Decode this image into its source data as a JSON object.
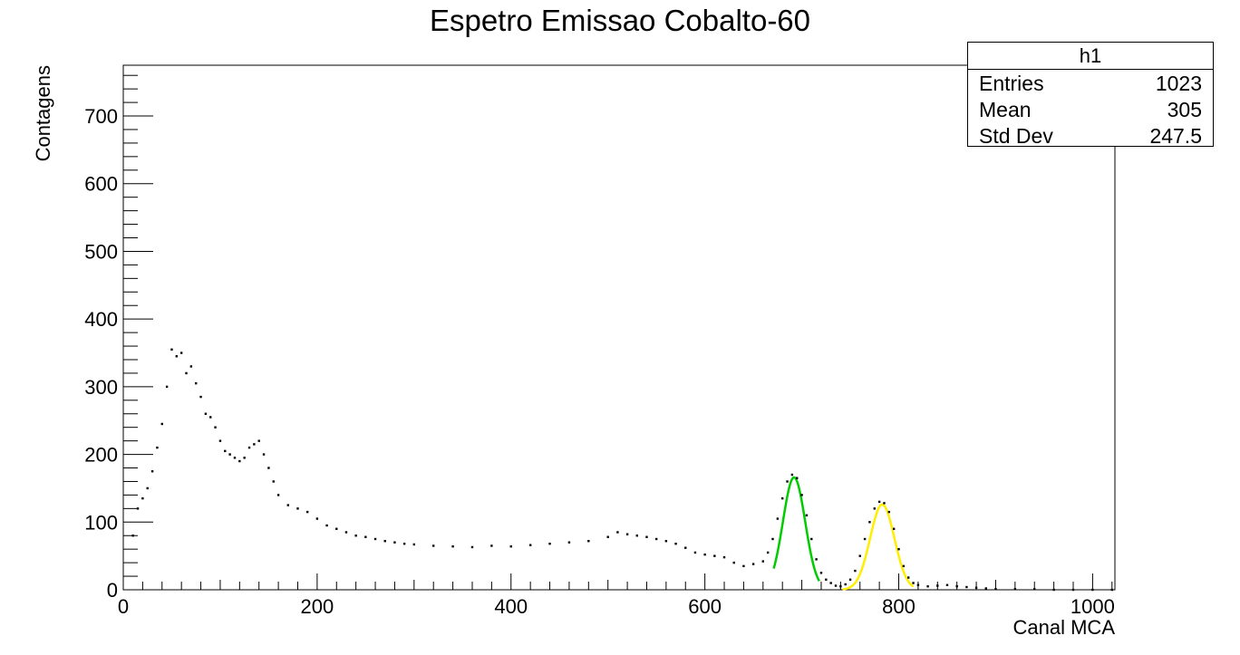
{
  "chart_data": {
    "type": "scatter",
    "title": "Espetro Emissao Cobalto-60",
    "xlabel": "Canal MCA",
    "ylabel": "Contagens",
    "xlim": [
      0,
      1023
    ],
    "ylim": [
      0,
      775
    ],
    "x_ticks": [
      "0",
      "200",
      "400",
      "600",
      "800",
      "1000"
    ],
    "y_ticks": [
      "0",
      "100",
      "200",
      "300",
      "400",
      "500",
      "600",
      "700"
    ],
    "grid": false,
    "stats_box": {
      "name": "h1",
      "rows": [
        {
          "label": "Entries",
          "value": "1023"
        },
        {
          "label": "Mean",
          "value": "305"
        },
        {
          "label": "Std Dev",
          "value": "247.5"
        }
      ]
    },
    "series": [
      {
        "marker": "dot",
        "color": "#000000",
        "points": [
          [
            10,
            80
          ],
          [
            15,
            120
          ],
          [
            20,
            135
          ],
          [
            25,
            150
          ],
          [
            30,
            175
          ],
          [
            35,
            210
          ],
          [
            40,
            245
          ],
          [
            45,
            300
          ],
          [
            50,
            355
          ],
          [
            55,
            345
          ],
          [
            60,
            350
          ],
          [
            65,
            320
          ],
          [
            70,
            330
          ],
          [
            75,
            305
          ],
          [
            80,
            285
          ],
          [
            85,
            260
          ],
          [
            90,
            255
          ],
          [
            95,
            240
          ],
          [
            100,
            220
          ],
          [
            105,
            205
          ],
          [
            110,
            200
          ],
          [
            115,
            195
          ],
          [
            120,
            190
          ],
          [
            125,
            195
          ],
          [
            130,
            210
          ],
          [
            135,
            215
          ],
          [
            140,
            220
          ],
          [
            145,
            200
          ],
          [
            150,
            180
          ],
          [
            155,
            160
          ],
          [
            160,
            140
          ],
          [
            170,
            125
          ],
          [
            180,
            120
          ],
          [
            190,
            115
          ],
          [
            200,
            105
          ],
          [
            210,
            95
          ],
          [
            220,
            90
          ],
          [
            230,
            85
          ],
          [
            240,
            80
          ],
          [
            250,
            78
          ],
          [
            260,
            75
          ],
          [
            270,
            72
          ],
          [
            280,
            70
          ],
          [
            290,
            68
          ],
          [
            300,
            67
          ],
          [
            320,
            65
          ],
          [
            340,
            64
          ],
          [
            360,
            63
          ],
          [
            380,
            65
          ],
          [
            400,
            64
          ],
          [
            420,
            66
          ],
          [
            440,
            68
          ],
          [
            460,
            70
          ],
          [
            480,
            72
          ],
          [
            500,
            78
          ],
          [
            510,
            85
          ],
          [
            520,
            82
          ],
          [
            530,
            80
          ],
          [
            540,
            78
          ],
          [
            550,
            75
          ],
          [
            560,
            72
          ],
          [
            570,
            68
          ],
          [
            580,
            62
          ],
          [
            590,
            55
          ],
          [
            600,
            52
          ],
          [
            610,
            50
          ],
          [
            620,
            48
          ],
          [
            630,
            40
          ],
          [
            640,
            35
          ],
          [
            650,
            38
          ],
          [
            660,
            42
          ],
          [
            665,
            55
          ],
          [
            670,
            75
          ],
          [
            675,
            105
          ],
          [
            680,
            135
          ],
          [
            685,
            160
          ],
          [
            690,
            170
          ],
          [
            695,
            165
          ],
          [
            700,
            140
          ],
          [
            705,
            110
          ],
          [
            710,
            75
          ],
          [
            715,
            45
          ],
          [
            720,
            25
          ],
          [
            725,
            15
          ],
          [
            730,
            10
          ],
          [
            735,
            6
          ],
          [
            740,
            5
          ],
          [
            745,
            8
          ],
          [
            750,
            15
          ],
          [
            755,
            28
          ],
          [
            760,
            50
          ],
          [
            765,
            75
          ],
          [
            770,
            100
          ],
          [
            775,
            120
          ],
          [
            780,
            130
          ],
          [
            785,
            128
          ],
          [
            790,
            115
          ],
          [
            795,
            90
          ],
          [
            800,
            60
          ],
          [
            805,
            35
          ],
          [
            810,
            18
          ],
          [
            815,
            10
          ],
          [
            820,
            7
          ],
          [
            830,
            5
          ],
          [
            840,
            6
          ],
          [
            850,
            7
          ],
          [
            860,
            5
          ],
          [
            870,
            4
          ],
          [
            880,
            3
          ],
          [
            890,
            2
          ],
          [
            900,
            1
          ],
          [
            920,
            1
          ],
          [
            940,
            1
          ],
          [
            960,
            0
          ],
          [
            980,
            0
          ],
          [
            1000,
            0
          ],
          [
            1020,
            0
          ]
        ]
      }
    ],
    "fits": [
      {
        "type": "gaussian",
        "color": "#00cc00",
        "amplitude": 166,
        "mean": 692,
        "sigma": 11.5,
        "range": [
          671,
          718
        ]
      },
      {
        "type": "gaussian",
        "color": "#ffee00",
        "amplitude": 126,
        "mean": 783,
        "sigma": 12.5,
        "range": [
          742,
          815
        ]
      }
    ]
  }
}
